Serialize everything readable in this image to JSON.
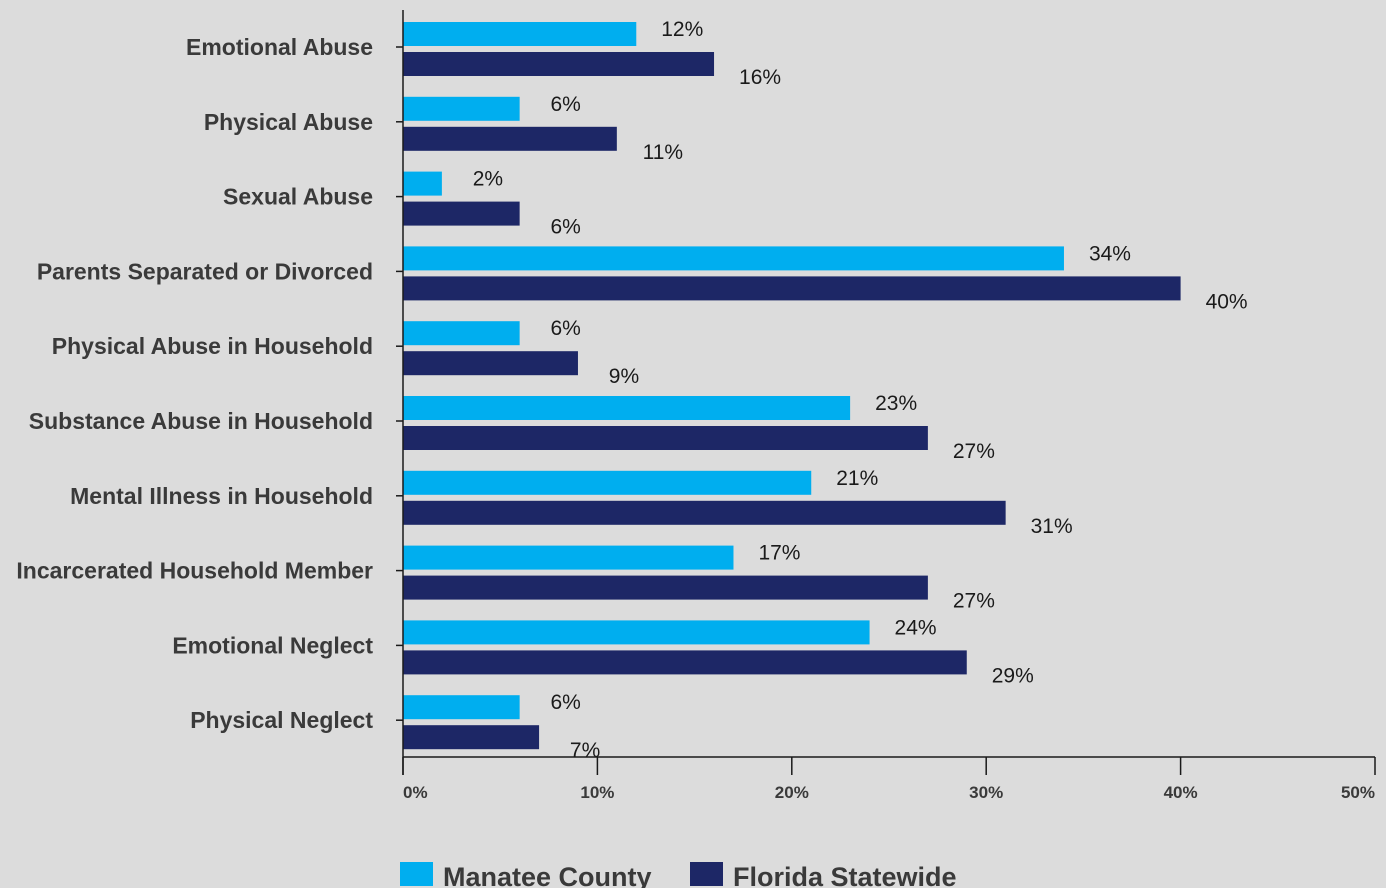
{
  "chart_data": {
    "type": "bar",
    "orientation": "horizontal",
    "categories": [
      "Emotional Abuse",
      "Physical Abuse",
      "Sexual Abuse",
      "Parents Separated or Divorced",
      "Physical Abuse in Household",
      "Substance Abuse in Household",
      "Mental Illness in Household",
      "Incarcerated Household Member",
      "Emotional Neglect",
      "Physical Neglect"
    ],
    "series": [
      {
        "name": "Manatee County",
        "color": "#00aeef",
        "values": [
          12,
          6,
          2,
          34,
          6,
          23,
          21,
          17,
          24,
          6
        ],
        "labels": [
          "12%",
          "6%",
          "2%",
          "34%",
          "6%",
          "23%",
          "21%",
          "17%",
          "24%",
          "6%"
        ]
      },
      {
        "name": "Florida Statewide",
        "color": "#1d2766",
        "values": [
          16,
          11,
          6,
          40,
          9,
          27,
          31,
          27,
          29,
          7
        ],
        "labels": [
          "16%",
          "11%",
          "6%",
          "40%",
          "9%",
          "27%",
          "31%",
          "27%",
          "29%",
          "7%"
        ]
      }
    ],
    "xlim": [
      0,
      50
    ],
    "xticks": [
      0,
      10,
      20,
      30,
      40,
      50
    ],
    "xtick_labels": [
      "0%",
      "10%",
      "20%",
      "30%",
      "40%",
      "50%"
    ],
    "grid": false,
    "legend": "bottom-center"
  }
}
